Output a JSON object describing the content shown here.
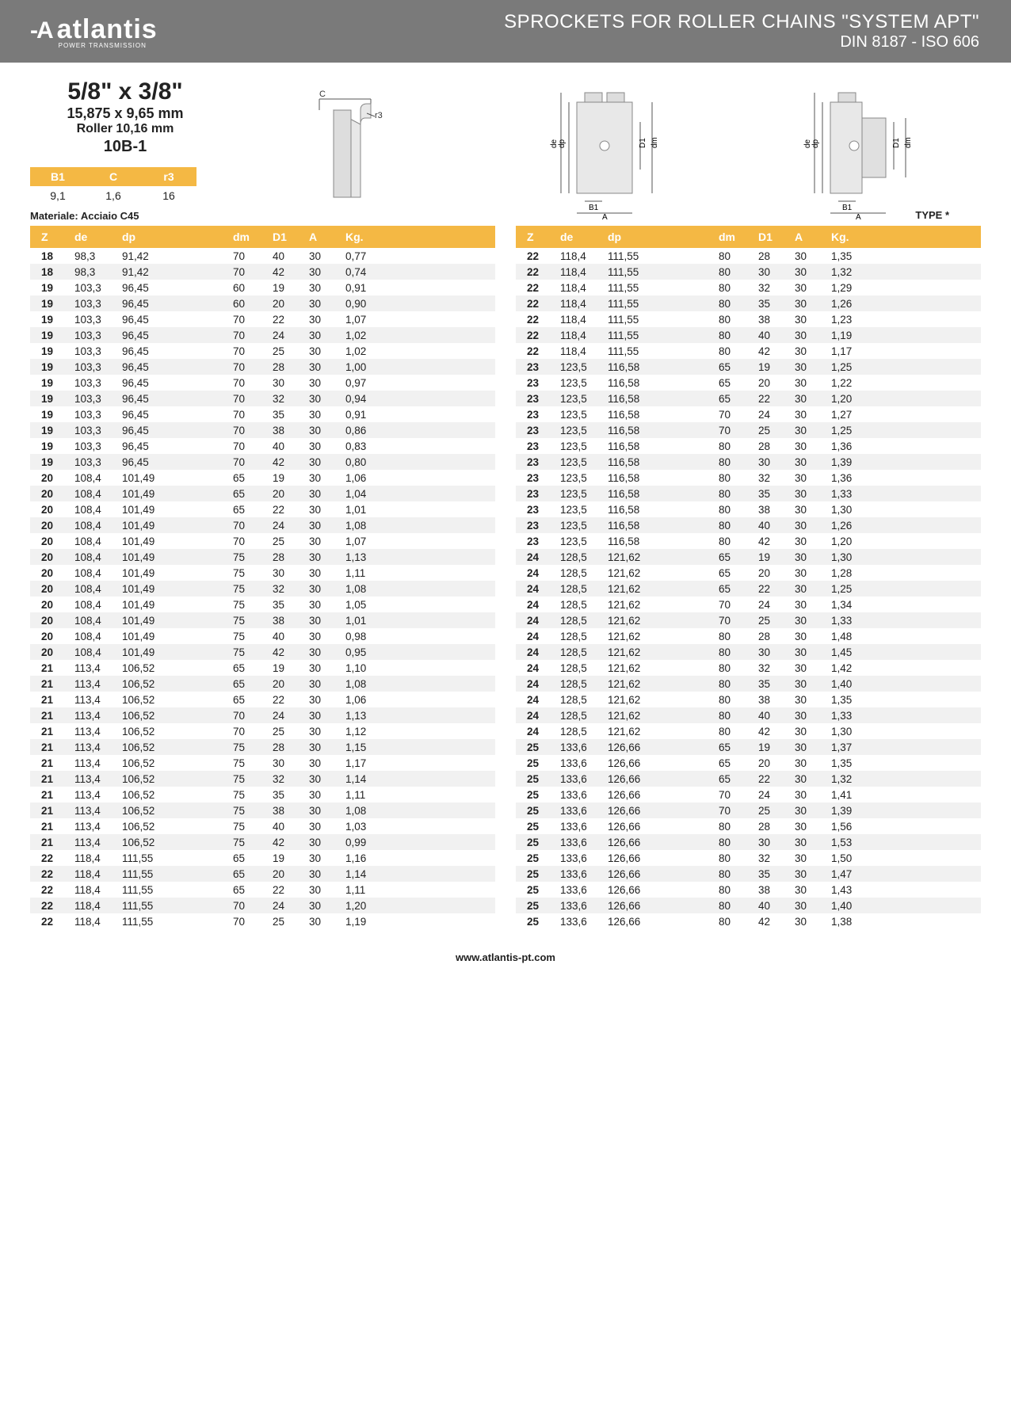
{
  "header": {
    "logo_text": "atlantis",
    "logo_sub": "POWER TRANSMISSION",
    "title": "SPROCKETS FOR ROLLER CHAINS \"SYSTEM APT\"",
    "subtitle": "DIN 8187 - ISO 606"
  },
  "product": {
    "size": "5/8\" x 3/8\"",
    "metric": "15,875 x 9,65 mm",
    "roller": "Roller 10,16 mm",
    "code": "10B-1"
  },
  "dims": {
    "headers": [
      "B1",
      "C",
      "r3"
    ],
    "values": [
      "9,1",
      "1,6",
      "16"
    ]
  },
  "material_label": "Materiale: Acciaio C45",
  "type_label": "TYPE *",
  "diagram_labels": {
    "c": "C",
    "r3": "r3",
    "de": "de",
    "dp": "dp",
    "d1": "D1",
    "dm": "dm",
    "b1": "B1",
    "a": "A"
  },
  "table_headers": [
    "Z",
    "de",
    "dp",
    "dm",
    "D1",
    "A",
    "Kg."
  ],
  "left_rows": [
    [
      "18",
      "98,3",
      "91,42",
      "70",
      "40",
      "30",
      "0,77"
    ],
    [
      "18",
      "98,3",
      "91,42",
      "70",
      "42",
      "30",
      "0,74"
    ],
    [
      "19",
      "103,3",
      "96,45",
      "60",
      "19",
      "30",
      "0,91"
    ],
    [
      "19",
      "103,3",
      "96,45",
      "60",
      "20",
      "30",
      "0,90"
    ],
    [
      "19",
      "103,3",
      "96,45",
      "70",
      "22",
      "30",
      "1,07"
    ],
    [
      "19",
      "103,3",
      "96,45",
      "70",
      "24",
      "30",
      "1,02"
    ],
    [
      "19",
      "103,3",
      "96,45",
      "70",
      "25",
      "30",
      "1,02"
    ],
    [
      "19",
      "103,3",
      "96,45",
      "70",
      "28",
      "30",
      "1,00"
    ],
    [
      "19",
      "103,3",
      "96,45",
      "70",
      "30",
      "30",
      "0,97"
    ],
    [
      "19",
      "103,3",
      "96,45",
      "70",
      "32",
      "30",
      "0,94"
    ],
    [
      "19",
      "103,3",
      "96,45",
      "70",
      "35",
      "30",
      "0,91"
    ],
    [
      "19",
      "103,3",
      "96,45",
      "70",
      "38",
      "30",
      "0,86"
    ],
    [
      "19",
      "103,3",
      "96,45",
      "70",
      "40",
      "30",
      "0,83"
    ],
    [
      "19",
      "103,3",
      "96,45",
      "70",
      "42",
      "30",
      "0,80"
    ],
    [
      "20",
      "108,4",
      "101,49",
      "65",
      "19",
      "30",
      "1,06"
    ],
    [
      "20",
      "108,4",
      "101,49",
      "65",
      "20",
      "30",
      "1,04"
    ],
    [
      "20",
      "108,4",
      "101,49",
      "65",
      "22",
      "30",
      "1,01"
    ],
    [
      "20",
      "108,4",
      "101,49",
      "70",
      "24",
      "30",
      "1,08"
    ],
    [
      "20",
      "108,4",
      "101,49",
      "70",
      "25",
      "30",
      "1,07"
    ],
    [
      "20",
      "108,4",
      "101,49",
      "75",
      "28",
      "30",
      "1,13"
    ],
    [
      "20",
      "108,4",
      "101,49",
      "75",
      "30",
      "30",
      "1,11"
    ],
    [
      "20",
      "108,4",
      "101,49",
      "75",
      "32",
      "30",
      "1,08"
    ],
    [
      "20",
      "108,4",
      "101,49",
      "75",
      "35",
      "30",
      "1,05"
    ],
    [
      "20",
      "108,4",
      "101,49",
      "75",
      "38",
      "30",
      "1,01"
    ],
    [
      "20",
      "108,4",
      "101,49",
      "75",
      "40",
      "30",
      "0,98"
    ],
    [
      "20",
      "108,4",
      "101,49",
      "75",
      "42",
      "30",
      "0,95"
    ],
    [
      "21",
      "113,4",
      "106,52",
      "65",
      "19",
      "30",
      "1,10"
    ],
    [
      "21",
      "113,4",
      "106,52",
      "65",
      "20",
      "30",
      "1,08"
    ],
    [
      "21",
      "113,4",
      "106,52",
      "65",
      "22",
      "30",
      "1,06"
    ],
    [
      "21",
      "113,4",
      "106,52",
      "70",
      "24",
      "30",
      "1,13"
    ],
    [
      "21",
      "113,4",
      "106,52",
      "70",
      "25",
      "30",
      "1,12"
    ],
    [
      "21",
      "113,4",
      "106,52",
      "75",
      "28",
      "30",
      "1,15"
    ],
    [
      "21",
      "113,4",
      "106,52",
      "75",
      "30",
      "30",
      "1,17"
    ],
    [
      "21",
      "113,4",
      "106,52",
      "75",
      "32",
      "30",
      "1,14"
    ],
    [
      "21",
      "113,4",
      "106,52",
      "75",
      "35",
      "30",
      "1,11"
    ],
    [
      "21",
      "113,4",
      "106,52",
      "75",
      "38",
      "30",
      "1,08"
    ],
    [
      "21",
      "113,4",
      "106,52",
      "75",
      "40",
      "30",
      "1,03"
    ],
    [
      "21",
      "113,4",
      "106,52",
      "75",
      "42",
      "30",
      "0,99"
    ],
    [
      "22",
      "118,4",
      "111,55",
      "65",
      "19",
      "30",
      "1,16"
    ],
    [
      "22",
      "118,4",
      "111,55",
      "65",
      "20",
      "30",
      "1,14"
    ],
    [
      "22",
      "118,4",
      "111,55",
      "65",
      "22",
      "30",
      "1,11"
    ],
    [
      "22",
      "118,4",
      "111,55",
      "70",
      "24",
      "30",
      "1,20"
    ],
    [
      "22",
      "118,4",
      "111,55",
      "70",
      "25",
      "30",
      "1,19"
    ]
  ],
  "right_rows": [
    [
      "22",
      "118,4",
      "111,55",
      "80",
      "28",
      "30",
      "1,35"
    ],
    [
      "22",
      "118,4",
      "111,55",
      "80",
      "30",
      "30",
      "1,32"
    ],
    [
      "22",
      "118,4",
      "111,55",
      "80",
      "32",
      "30",
      "1,29"
    ],
    [
      "22",
      "118,4",
      "111,55",
      "80",
      "35",
      "30",
      "1,26"
    ],
    [
      "22",
      "118,4",
      "111,55",
      "80",
      "38",
      "30",
      "1,23"
    ],
    [
      "22",
      "118,4",
      "111,55",
      "80",
      "40",
      "30",
      "1,19"
    ],
    [
      "22",
      "118,4",
      "111,55",
      "80",
      "42",
      "30",
      "1,17"
    ],
    [
      "23",
      "123,5",
      "116,58",
      "65",
      "19",
      "30",
      "1,25"
    ],
    [
      "23",
      "123,5",
      "116,58",
      "65",
      "20",
      "30",
      "1,22"
    ],
    [
      "23",
      "123,5",
      "116,58",
      "65",
      "22",
      "30",
      "1,20"
    ],
    [
      "23",
      "123,5",
      "116,58",
      "70",
      "24",
      "30",
      "1,27"
    ],
    [
      "23",
      "123,5",
      "116,58",
      "70",
      "25",
      "30",
      "1,25"
    ],
    [
      "23",
      "123,5",
      "116,58",
      "80",
      "28",
      "30",
      "1,36"
    ],
    [
      "23",
      "123,5",
      "116,58",
      "80",
      "30",
      "30",
      "1,39"
    ],
    [
      "23",
      "123,5",
      "116,58",
      "80",
      "32",
      "30",
      "1,36"
    ],
    [
      "23",
      "123,5",
      "116,58",
      "80",
      "35",
      "30",
      "1,33"
    ],
    [
      "23",
      "123,5",
      "116,58",
      "80",
      "38",
      "30",
      "1,30"
    ],
    [
      "23",
      "123,5",
      "116,58",
      "80",
      "40",
      "30",
      "1,26"
    ],
    [
      "23",
      "123,5",
      "116,58",
      "80",
      "42",
      "30",
      "1,20"
    ],
    [
      "24",
      "128,5",
      "121,62",
      "65",
      "19",
      "30",
      "1,30"
    ],
    [
      "24",
      "128,5",
      "121,62",
      "65",
      "20",
      "30",
      "1,28"
    ],
    [
      "24",
      "128,5",
      "121,62",
      "65",
      "22",
      "30",
      "1,25"
    ],
    [
      "24",
      "128,5",
      "121,62",
      "70",
      "24",
      "30",
      "1,34"
    ],
    [
      "24",
      "128,5",
      "121,62",
      "70",
      "25",
      "30",
      "1,33"
    ],
    [
      "24",
      "128,5",
      "121,62",
      "80",
      "28",
      "30",
      "1,48"
    ],
    [
      "24",
      "128,5",
      "121,62",
      "80",
      "30",
      "30",
      "1,45"
    ],
    [
      "24",
      "128,5",
      "121,62",
      "80",
      "32",
      "30",
      "1,42"
    ],
    [
      "24",
      "128,5",
      "121,62",
      "80",
      "35",
      "30",
      "1,40"
    ],
    [
      "24",
      "128,5",
      "121,62",
      "80",
      "38",
      "30",
      "1,35"
    ],
    [
      "24",
      "128,5",
      "121,62",
      "80",
      "40",
      "30",
      "1,33"
    ],
    [
      "24",
      "128,5",
      "121,62",
      "80",
      "42",
      "30",
      "1,30"
    ],
    [
      "25",
      "133,6",
      "126,66",
      "65",
      "19",
      "30",
      "1,37"
    ],
    [
      "25",
      "133,6",
      "126,66",
      "65",
      "20",
      "30",
      "1,35"
    ],
    [
      "25",
      "133,6",
      "126,66",
      "65",
      "22",
      "30",
      "1,32"
    ],
    [
      "25",
      "133,6",
      "126,66",
      "70",
      "24",
      "30",
      "1,41"
    ],
    [
      "25",
      "133,6",
      "126,66",
      "70",
      "25",
      "30",
      "1,39"
    ],
    [
      "25",
      "133,6",
      "126,66",
      "80",
      "28",
      "30",
      "1,56"
    ],
    [
      "25",
      "133,6",
      "126,66",
      "80",
      "30",
      "30",
      "1,53"
    ],
    [
      "25",
      "133,6",
      "126,66",
      "80",
      "32",
      "30",
      "1,50"
    ],
    [
      "25",
      "133,6",
      "126,66",
      "80",
      "35",
      "30",
      "1,47"
    ],
    [
      "25",
      "133,6",
      "126,66",
      "80",
      "38",
      "30",
      "1,43"
    ],
    [
      "25",
      "133,6",
      "126,66",
      "80",
      "40",
      "30",
      "1,40"
    ],
    [
      "25",
      "133,6",
      "126,66",
      "80",
      "42",
      "30",
      "1,38"
    ]
  ],
  "footer": "www.atlantis-pt.com",
  "colors": {
    "accent": "#f4b844",
    "header_bg": "#7a7a7a",
    "row_alt": "#f1f1f1"
  }
}
